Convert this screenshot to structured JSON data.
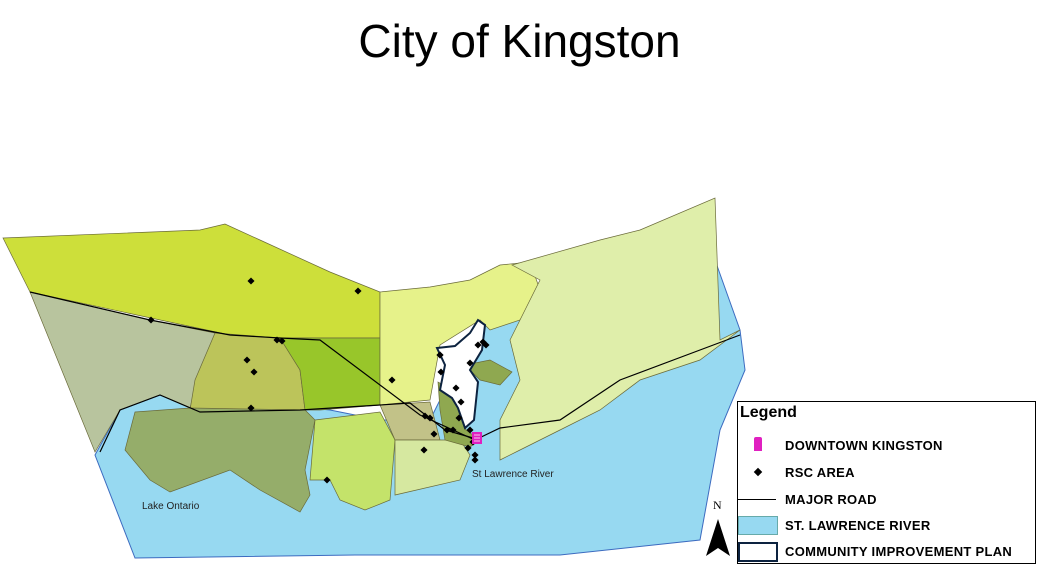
{
  "title": "City of Kingston",
  "map_labels": {
    "lake": "Lake Ontario",
    "river": "St Lawrence River"
  },
  "legend": {
    "title": "Legend",
    "items": [
      {
        "label": "DOWNTOWN KINGSTON",
        "symbol": "building-icon",
        "color": "#e020c0"
      },
      {
        "label": "RSC AREA",
        "symbol": "point",
        "color": "#000000"
      },
      {
        "label": "MAJOR ROAD",
        "symbol": "line",
        "color": "#000000"
      },
      {
        "label": "ST. LAWRENCE RIVER",
        "symbol": "fill",
        "color": "#97d9f1"
      },
      {
        "label": "COMMUNITY IMPROVEMENT PLAN",
        "symbol": "outline",
        "color": "#0d2340"
      }
    ]
  },
  "north_arrow": "N",
  "colors": {
    "water": "#97d9f1",
    "cip_outline": "#0d2340",
    "downtown": "#e020c0"
  }
}
